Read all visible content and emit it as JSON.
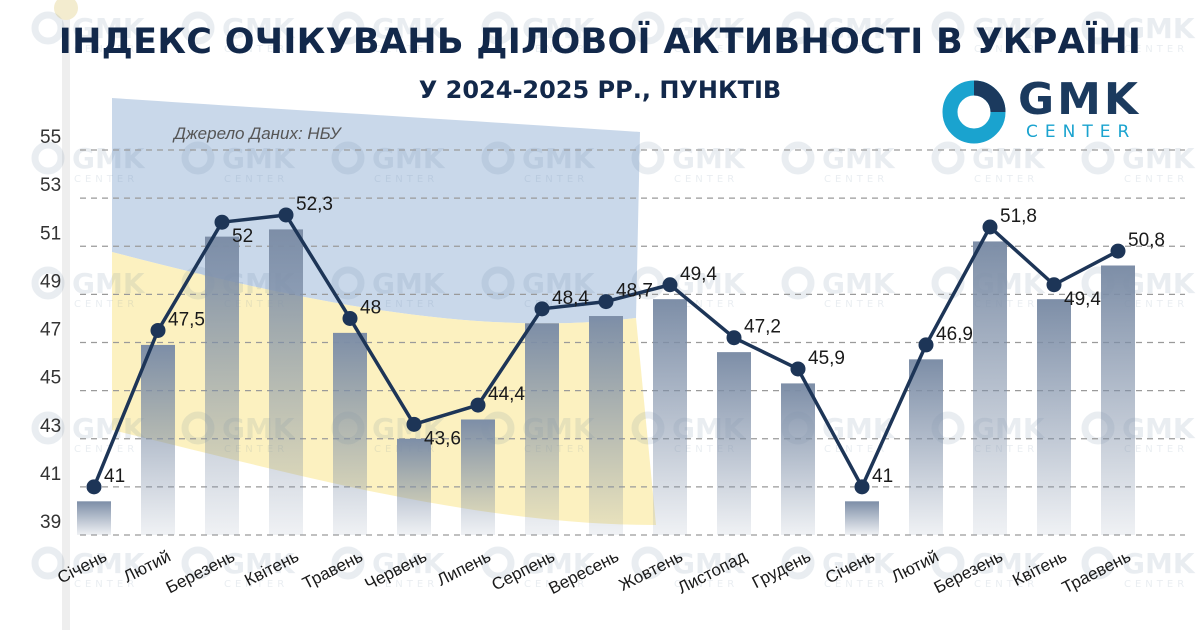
{
  "title": "ІНДЕКС ОЧІКУВАНЬ ДІЛОВОЇ АКТИВНОСТІ В УКРАЇНІ",
  "subtitle": "У 2024-2025 РР., ПУНКТІВ",
  "source": "Джерело Даних: НБУ",
  "logo": {
    "name": "GMK",
    "sub": "CENTER"
  },
  "watermark": {
    "name": "GMK",
    "sub": "CENTER"
  },
  "colors": {
    "title": "#12284a",
    "line": "#1d3557",
    "bar": "#7d8ea7",
    "flag_blue": "#b7cbe3",
    "flag_yellow": "#fbeeb0",
    "logo_blue": "#1aa3cf",
    "logo_dark": "#1b3a5e"
  },
  "chart_data": {
    "type": "bar",
    "title": "ІНДЕКС ОЧІКУВАНЬ ДІЛОВОЇ АКТИВНОСТІ В УКРАЇНІ",
    "subtitle": "У 2024-2025 РР., ПУНКТІВ",
    "categories": [
      "Січень",
      "Лютий",
      "Березень",
      "Квітень",
      "Травень",
      "Червень",
      "Липень",
      "Серпень",
      "Вересень",
      "Жовтень",
      "Листопад",
      "Грудень",
      "Січень",
      "Лютий",
      "Березень",
      "Квітень",
      "Траевень"
    ],
    "series": [
      {
        "values": [
          41,
          47.5,
          52,
          52.3,
          48,
          43.6,
          44.4,
          48.4,
          48.7,
          49.4,
          47.2,
          45.9,
          41,
          46.9,
          51.8,
          49.4,
          50.8
        ]
      }
    ],
    "data_labels": [
      "41",
      "47,5",
      "52",
      "52,3",
      "48",
      "43,6",
      "44,4",
      "48,4",
      "48,7",
      "49,4",
      "47,2",
      "45,9",
      "41",
      "46,9",
      "51,8",
      "49,4",
      "50,8"
    ],
    "y_ticks": [
      "39",
      "41",
      "43",
      "45",
      "47",
      "49",
      "51",
      "53",
      "55"
    ],
    "ylim": [
      39,
      55
    ],
    "overlay": "line-with-markers",
    "grid": "dashed-horizontal",
    "legend": "none"
  }
}
